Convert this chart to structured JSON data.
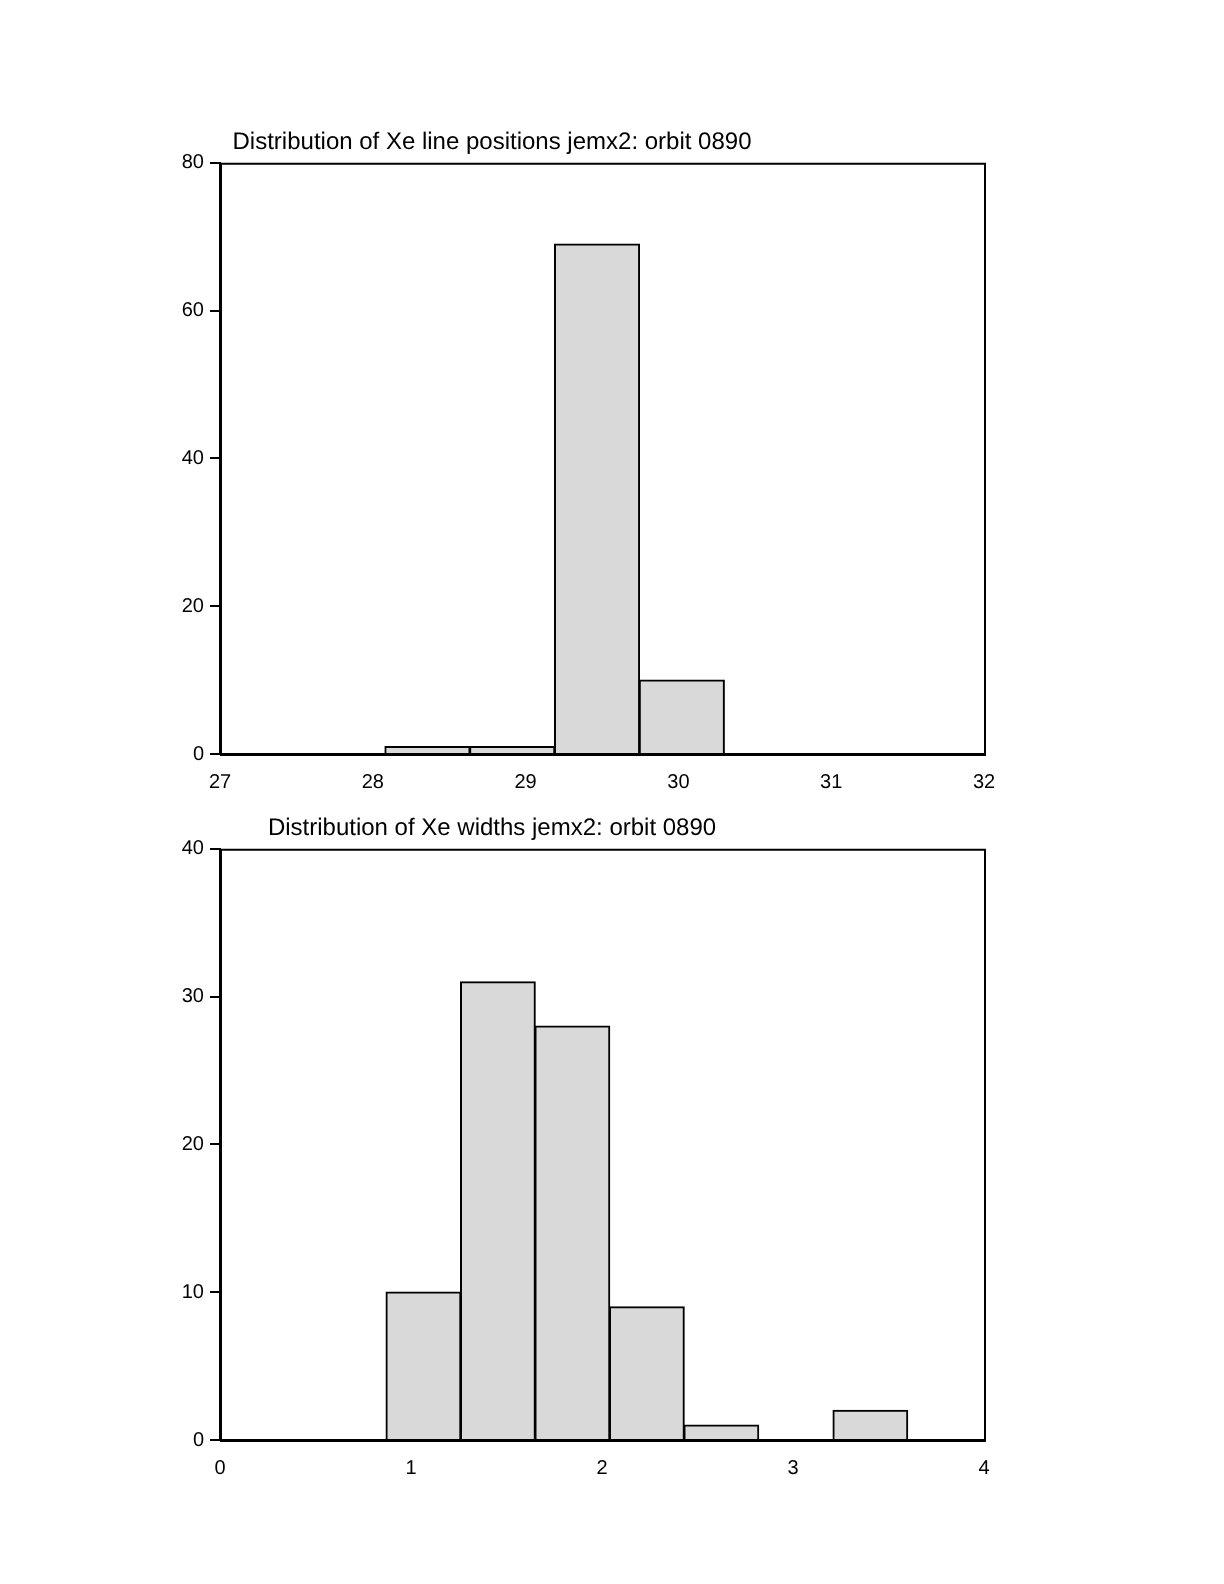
{
  "chart_data": [
    {
      "type": "histogram",
      "title": "Distribution of Xe line positions jemx2: orbit 0890",
      "bins": [
        28.08,
        28.635,
        29.19,
        29.745,
        30.3
      ],
      "values": [
        1,
        1,
        69,
        10
      ],
      "color": "#d9d9d9",
      "xlim": [
        27,
        32
      ],
      "xticks": [
        27,
        28,
        29,
        30,
        31,
        32
      ],
      "ylim": [
        0,
        80
      ],
      "yticks": [
        0,
        20,
        40,
        60,
        80
      ]
    },
    {
      "type": "histogram",
      "title": "Distribution of Xe widths jemx2: orbit 0890",
      "bins": [
        0.87,
        1.26,
        1.65,
        2.04,
        2.43,
        2.82,
        3.21,
        3.6
      ],
      "values": [
        10,
        31,
        28,
        9,
        1,
        0,
        2
      ],
      "color": "#d9d9d9",
      "xlim": [
        0,
        4
      ],
      "xticks": [
        0,
        1,
        2,
        3,
        4
      ],
      "ylim": [
        0,
        40
      ],
      "yticks": [
        0,
        10,
        20,
        30,
        40
      ]
    }
  ]
}
